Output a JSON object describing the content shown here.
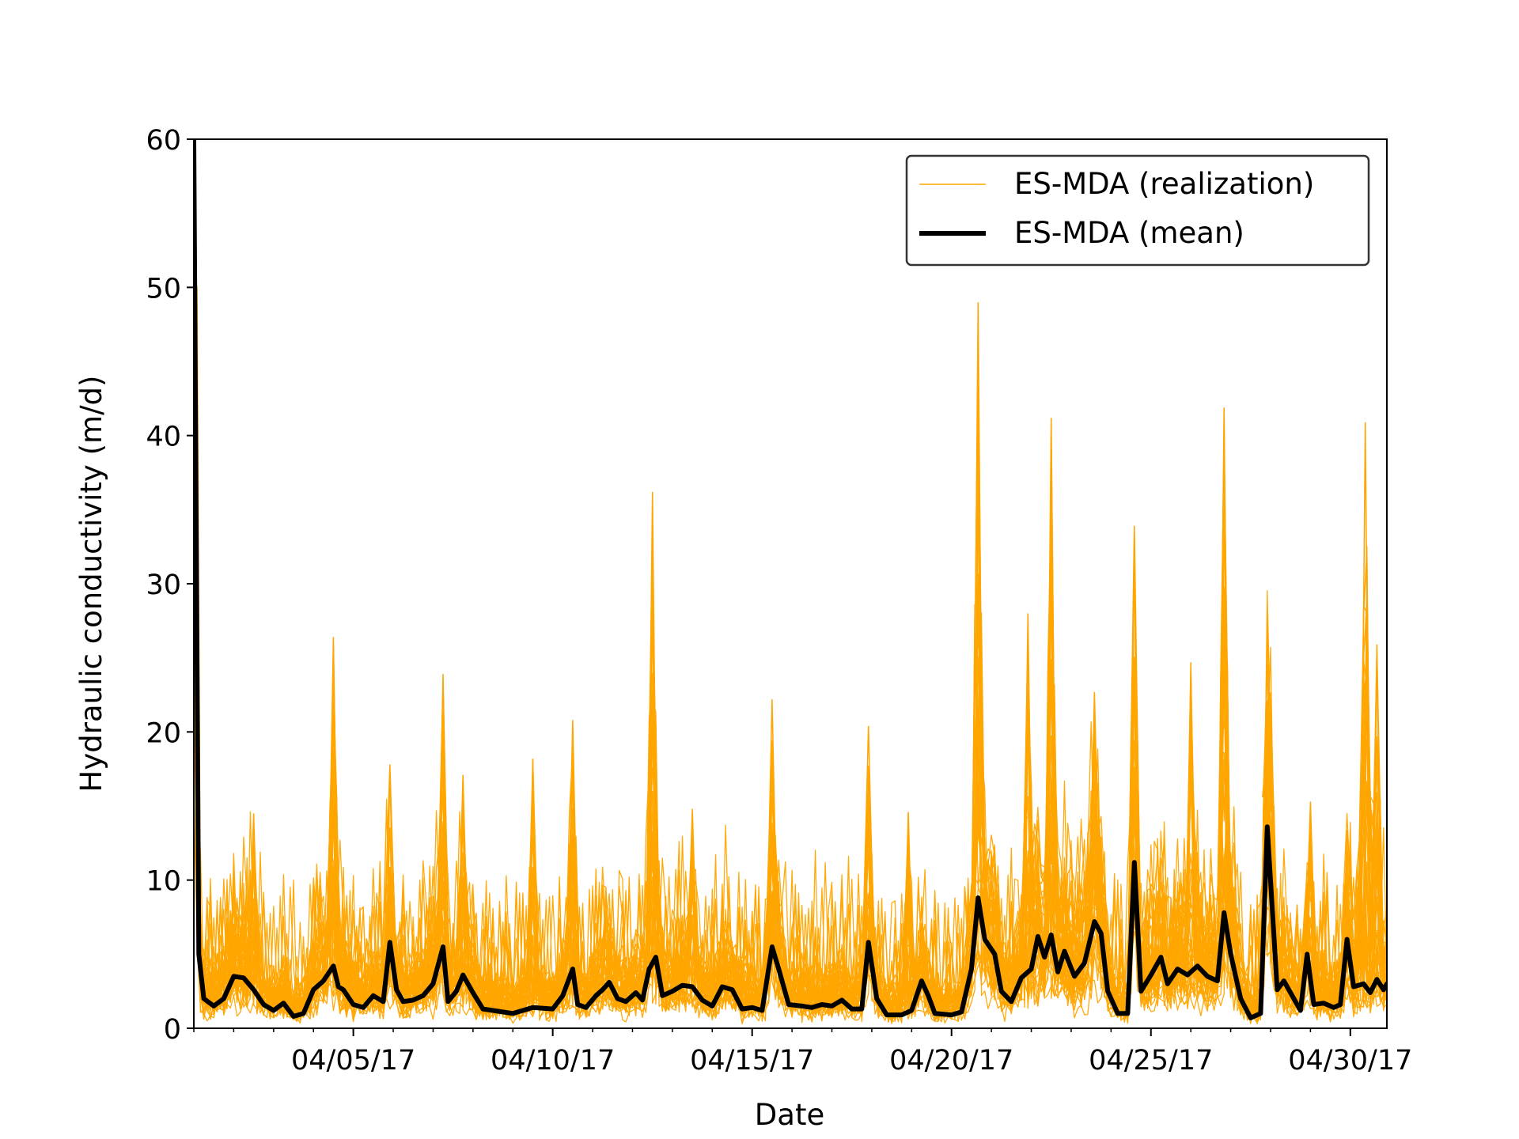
{
  "chart_data": {
    "type": "line",
    "title": "",
    "xlabel": "Date",
    "ylabel": "Hydraulic conductivity (m/d)",
    "x_range": [
      "04/01/17",
      "04/30/17 22:00"
    ],
    "ylim": [
      0,
      60
    ],
    "y_ticks": [
      0,
      10,
      20,
      30,
      40,
      50,
      60
    ],
    "x_ticks": [
      {
        "date": "04/05/17",
        "label": "04/05/17"
      },
      {
        "date": "04/10/17",
        "label": "04/10/17"
      },
      {
        "date": "04/15/17",
        "label": "04/15/17"
      },
      {
        "date": "04/20/17",
        "label": "04/20/17"
      },
      {
        "date": "04/25/17",
        "label": "04/25/17"
      },
      {
        "date": "04/30/17",
        "label": "04/30/17"
      }
    ],
    "grid": false,
    "legend": {
      "position": "top-right",
      "entries": [
        "ES-MDA (realization)",
        "ES-MDA (mean)"
      ]
    },
    "colors": {
      "realization": "#ffa500",
      "mean": "#000000"
    },
    "series": [
      {
        "name": "ES-MDA (mean)",
        "points": [
          [
            "04/01/17 00:00",
            60
          ],
          [
            "04/01/17 03:00",
            5.0
          ],
          [
            "04/01/17 06:00",
            2.0
          ],
          [
            "04/01/17 12:00",
            1.5
          ],
          [
            "04/01/17 18:00",
            2.0
          ],
          [
            "04/02/17 00:00",
            3.5
          ],
          [
            "04/02/17 06:00",
            3.4
          ],
          [
            "04/02/17 12:00",
            2.6
          ],
          [
            "04/02/17 18:00",
            1.6
          ],
          [
            "04/03/17 00:00",
            1.2
          ],
          [
            "04/03/17 06:00",
            1.7
          ],
          [
            "04/03/17 12:00",
            0.8
          ],
          [
            "04/03/17 18:00",
            1.0
          ],
          [
            "04/04/17 00:00",
            2.6
          ],
          [
            "04/04/17 06:00",
            3.2
          ],
          [
            "04/04/17 12:00",
            4.2
          ],
          [
            "04/04/17 15:00",
            2.8
          ],
          [
            "04/04/17 18:00",
            2.6
          ],
          [
            "04/05/17 00:00",
            1.6
          ],
          [
            "04/05/17 06:00",
            1.4
          ],
          [
            "04/05/17 12:00",
            2.2
          ],
          [
            "04/05/17 18:00",
            1.8
          ],
          [
            "04/05/17 22:00",
            5.8
          ],
          [
            "04/06/17 02:00",
            2.6
          ],
          [
            "04/06/17 06:00",
            1.8
          ],
          [
            "04/06/17 12:00",
            1.9
          ],
          [
            "04/06/17 18:00",
            2.2
          ],
          [
            "04/07/17 00:00",
            3.0
          ],
          [
            "04/07/17 06:00",
            5.5
          ],
          [
            "04/07/17 09:00",
            1.8
          ],
          [
            "04/07/17 14:00",
            2.5
          ],
          [
            "04/07/17 18:00",
            3.6
          ],
          [
            "04/08/17 00:00",
            2.4
          ],
          [
            "04/08/17 06:00",
            1.3
          ],
          [
            "04/08/17 12:00",
            1.2
          ],
          [
            "04/09/17 00:00",
            1.0
          ],
          [
            "04/09/17 06:00",
            1.2
          ],
          [
            "04/09/17 12:00",
            1.4
          ],
          [
            "04/10/17 00:00",
            1.3
          ],
          [
            "04/10/17 06:00",
            2.2
          ],
          [
            "04/10/17 12:00",
            4.0
          ],
          [
            "04/10/17 15:00",
            1.6
          ],
          [
            "04/10/17 20:00",
            1.4
          ],
          [
            "04/11/17 02:00",
            2.2
          ],
          [
            "04/11/17 06:00",
            2.6
          ],
          [
            "04/11/17 10:00",
            3.1
          ],
          [
            "04/11/17 15:00",
            2.0
          ],
          [
            "04/11/17 20:00",
            1.8
          ],
          [
            "04/12/17 02:00",
            2.4
          ],
          [
            "04/12/17 06:00",
            1.9
          ],
          [
            "04/12/17 10:00",
            4.0
          ],
          [
            "04/12/17 14:00",
            4.8
          ],
          [
            "04/12/17 18:00",
            2.2
          ],
          [
            "04/13/17 00:00",
            2.5
          ],
          [
            "04/13/17 06:00",
            2.9
          ],
          [
            "04/13/17 12:00",
            2.8
          ],
          [
            "04/13/17 18:00",
            1.9
          ],
          [
            "04/14/17 00:00",
            1.5
          ],
          [
            "04/14/17 06:00",
            2.8
          ],
          [
            "04/14/17 12:00",
            2.6
          ],
          [
            "04/14/17 18:00",
            1.3
          ],
          [
            "04/15/17 00:00",
            1.4
          ],
          [
            "04/15/17 06:00",
            1.2
          ],
          [
            "04/15/17 12:00",
            5.5
          ],
          [
            "04/15/17 16:00",
            4.0
          ],
          [
            "04/15/17 22:00",
            1.6
          ],
          [
            "04/16/17 06:00",
            1.5
          ],
          [
            "04/16/17 12:00",
            1.4
          ],
          [
            "04/16/17 18:00",
            1.6
          ],
          [
            "04/17/17 00:00",
            1.5
          ],
          [
            "04/17/17 06:00",
            1.9
          ],
          [
            "04/17/17 12:00",
            1.3
          ],
          [
            "04/17/17 18:00",
            1.3
          ],
          [
            "04/17/17 22:00",
            5.8
          ],
          [
            "04/18/17 03:00",
            2.0
          ],
          [
            "04/18/17 09:00",
            0.9
          ],
          [
            "04/18/17 18:00",
            0.9
          ],
          [
            "04/19/17 00:00",
            1.2
          ],
          [
            "04/19/17 06:00",
            3.2
          ],
          [
            "04/19/17 10:00",
            2.2
          ],
          [
            "04/19/17 14:00",
            1.0
          ],
          [
            "04/20/17 00:00",
            0.9
          ],
          [
            "04/20/17 06:00",
            1.1
          ],
          [
            "04/20/17 12:00",
            4.0
          ],
          [
            "04/20/17 16:00",
            8.8
          ],
          [
            "04/20/17 20:00",
            6.0
          ],
          [
            "04/21/17 02:00",
            5.0
          ],
          [
            "04/21/17 06:00",
            2.5
          ],
          [
            "04/21/17 12:00",
            1.8
          ],
          [
            "04/21/17 18:00",
            3.4
          ],
          [
            "04/22/17 00:00",
            4.0
          ],
          [
            "04/22/17 04:00",
            6.2
          ],
          [
            "04/22/17 08:00",
            4.8
          ],
          [
            "04/22/17 12:00",
            6.3
          ],
          [
            "04/22/17 16:00",
            3.8
          ],
          [
            "04/22/17 20:00",
            5.2
          ],
          [
            "04/23/17 02:00",
            3.5
          ],
          [
            "04/23/17 08:00",
            4.4
          ],
          [
            "04/23/17 14:00",
            7.2
          ],
          [
            "04/23/17 18:00",
            6.4
          ],
          [
            "04/23/17 22:00",
            2.5
          ],
          [
            "04/24/17 04:00",
            1.0
          ],
          [
            "04/24/17 10:00",
            1.0
          ],
          [
            "04/24/17 14:00",
            11.2
          ],
          [
            "04/24/17 18:00",
            2.5
          ],
          [
            "04/25/17 00:00",
            3.6
          ],
          [
            "04/25/17 06:00",
            4.8
          ],
          [
            "04/25/17 10:00",
            3.0
          ],
          [
            "04/25/17 16:00",
            4.0
          ],
          [
            "04/25/17 22:00",
            3.6
          ],
          [
            "04/26/17 04:00",
            4.2
          ],
          [
            "04/26/17 10:00",
            3.5
          ],
          [
            "04/26/17 16:00",
            3.2
          ],
          [
            "04/26/17 20:00",
            7.8
          ],
          [
            "04/27/17 00:00",
            5.0
          ],
          [
            "04/27/17 06:00",
            2.0
          ],
          [
            "04/27/17 12:00",
            0.7
          ],
          [
            "04/27/17 18:00",
            1.0
          ],
          [
            "04/27/17 22:00",
            13.6
          ],
          [
            "04/28/17 04:00",
            2.6
          ],
          [
            "04/28/17 08:00",
            3.2
          ],
          [
            "04/28/17 14:00",
            2.0
          ],
          [
            "04/28/17 18:00",
            1.2
          ],
          [
            "04/28/17 22:00",
            5.0
          ],
          [
            "04/29/17 02:00",
            1.6
          ],
          [
            "04/29/17 08:00",
            1.7
          ],
          [
            "04/29/17 14:00",
            1.4
          ],
          [
            "04/29/17 18:00",
            1.6
          ],
          [
            "04/29/17 22:00",
            6.0
          ],
          [
            "04/30/17 02:00",
            2.8
          ],
          [
            "04/30/17 08:00",
            3.0
          ],
          [
            "04/30/17 12:00",
            2.4
          ],
          [
            "04/30/17 16:00",
            3.3
          ],
          [
            "04/30/17 20:00",
            2.6
          ],
          [
            "04/30/17 22:00",
            3.0
          ]
        ]
      }
    ],
    "spikes": [
      [
        "04/02/17 12:00",
        14.5
      ],
      [
        "04/04/17 12:00",
        26.4
      ],
      [
        "04/05/17 22:00",
        17.8
      ],
      [
        "04/07/17 06:00",
        23.9
      ],
      [
        "04/07/17 18:00",
        17.1
      ],
      [
        "04/09/17 12:00",
        18.2
      ],
      [
        "04/10/17 12:00",
        20.8
      ],
      [
        "04/12/17 12:00",
        36.2
      ],
      [
        "04/13/17 12:00",
        14.8
      ],
      [
        "04/15/17 12:00",
        22.2
      ],
      [
        "04/17/17 22:00",
        20.4
      ],
      [
        "04/18/17 22:00",
        14.6
      ],
      [
        "04/20/17 16:00",
        49.0
      ],
      [
        "04/21/17 22:00",
        28.0
      ],
      [
        "04/22/17 12:00",
        41.2
      ],
      [
        "04/23/17 14:00",
        22.7
      ],
      [
        "04/24/17 14:00",
        33.9
      ],
      [
        "04/26/17 00:00",
        24.7
      ],
      [
        "04/26/17 20:00",
        41.9
      ],
      [
        "04/27/17 22:00",
        19.3
      ],
      [
        "04/29/17 00:00",
        15.3
      ],
      [
        "04/30/17 09:00",
        40.9
      ],
      [
        "04/30/17 16:00",
        25.9
      ]
    ]
  }
}
